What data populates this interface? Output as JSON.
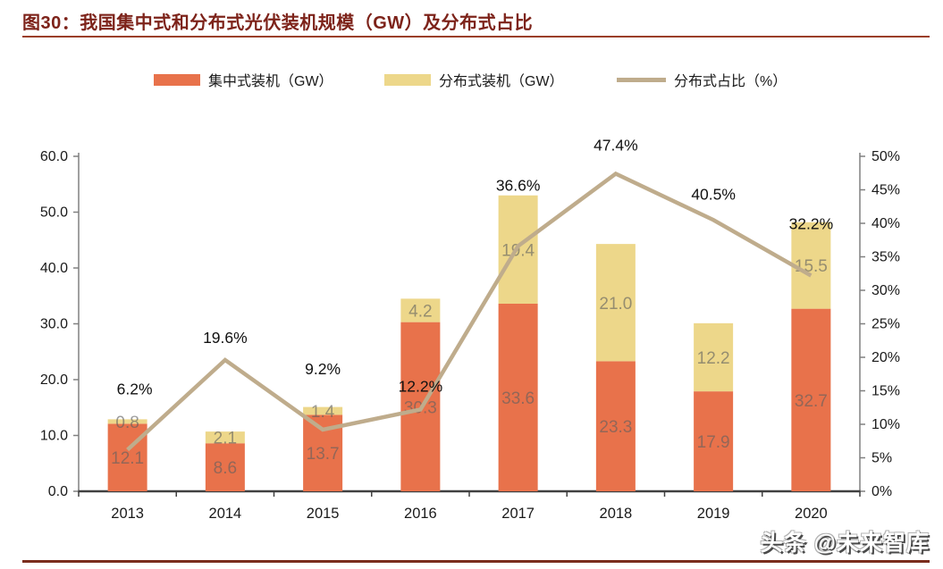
{
  "title": "图30：我国集中式和分布式光伏装机规模（GW）及分布式占比",
  "watermark": "头条 @未来智库",
  "colors": {
    "centralized_bar": "#E8724B",
    "distributed_bar": "#EDD78A",
    "share_line": "#BFAC8C",
    "title_text": "#7D231A",
    "top_rule": "#9A3E28",
    "bottom_rule": "#7B2D1D",
    "axis_gray": "#808080",
    "axis_dark": "#404040",
    "bar_label": "#606060",
    "tick_label": "#1a1a1a"
  },
  "legend": [
    {
      "label": "集中式装机（GW）",
      "marker": "swatch",
      "color": "#E8724B"
    },
    {
      "label": "分布式装机（GW）",
      "marker": "swatch",
      "color": "#EDD78A"
    },
    {
      "label": "分布式占比（%）",
      "marker": "line",
      "color": "#BFAC8C"
    }
  ],
  "chart_data": {
    "type": "bar",
    "subtype": "stacked-bars-with-line",
    "categories": [
      "2013",
      "2014",
      "2015",
      "2016",
      "2017",
      "2018",
      "2019",
      "2020"
    ],
    "series": [
      {
        "name": "集中式装机（GW）",
        "type": "bar",
        "stack": true,
        "axis": "left",
        "color": "#E8724B",
        "values": [
          12.1,
          8.6,
          13.7,
          30.3,
          33.6,
          23.3,
          17.9,
          32.7
        ],
        "labels": [
          "12.1",
          "8.6",
          "13.7",
          "30.3",
          "33.6",
          "23.3",
          "17.9",
          "32.7"
        ]
      },
      {
        "name": "分布式装机（GW）",
        "type": "bar",
        "stack": true,
        "axis": "left",
        "color": "#EDD78A",
        "values": [
          0.8,
          2.1,
          1.4,
          4.2,
          19.4,
          21.0,
          12.2,
          15.5
        ],
        "labels": [
          "0.8",
          "2.1",
          "1.4",
          "4.2",
          "19.4",
          "21.0",
          "12.2",
          "15.5"
        ]
      },
      {
        "name": "分布式占比（%）",
        "type": "line",
        "axis": "right",
        "color": "#BFAC8C",
        "values": [
          6.2,
          19.6,
          9.2,
          12.2,
          36.6,
          47.4,
          40.5,
          32.2
        ],
        "labels": [
          "6.2%",
          "19.6%",
          "9.2%",
          "12.2%",
          "36.6%",
          "47.4%",
          "40.5%",
          "32.2%"
        ],
        "label_dx": [
          8,
          0,
          0,
          0,
          0,
          0,
          0,
          0
        ],
        "label_dy": [
          -68,
          -25,
          -68,
          -26,
          -68,
          -32,
          -29,
          -58
        ]
      }
    ],
    "left_axis": {
      "min": 0,
      "max": 60,
      "step": 10,
      "tick_labels": [
        "0.0",
        "10.0",
        "20.0",
        "30.0",
        "40.0",
        "50.0",
        "60.0"
      ]
    },
    "right_axis": {
      "min": 0,
      "max": 50,
      "step": 5,
      "tick_labels": [
        "0%",
        "5%",
        "10%",
        "15%",
        "20%",
        "25%",
        "30%",
        "35%",
        "40%",
        "45%",
        "50%"
      ]
    },
    "grid": false,
    "legend_position": "top"
  }
}
